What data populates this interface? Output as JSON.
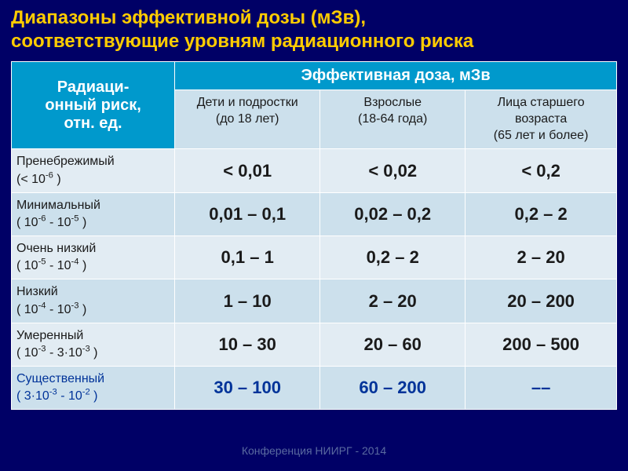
{
  "title_line1": "Диапазоны эффективной дозы (мЗв),",
  "title_line2": "соответствующие уровням радиационного риска",
  "header": {
    "risk_col_line1": "Радиаци-",
    "risk_col_line2": "онный риск,",
    "risk_col_line3": "отн. ед.",
    "dose_header": "Эффективная доза, мЗв",
    "sub": {
      "children_l1": "Дети и подростки",
      "children_l2": "(до 18 лет)",
      "adults_l1": "Взрослые",
      "adults_l2": "(18-64 года)",
      "elderly_l1": "Лица старшего возраста",
      "elderly_l2": "(65 лет и более)"
    }
  },
  "rows": [
    {
      "label": "Пренебрежимый",
      "range_html": "(< 10<sup>-6</sup> )",
      "children": "< 0,01",
      "adults": "< 0,02",
      "elderly": "< 0,2"
    },
    {
      "label": "Минимальный",
      "range_html": "( 10<sup>-6</sup> - 10<sup>-5</sup> )",
      "children": "0,01 – 0,1",
      "adults": "0,02 – 0,2",
      "elderly": "0,2 – 2"
    },
    {
      "label": "Очень низкий",
      "range_html": "( 10<sup>-5</sup> - 10<sup>-4</sup> )",
      "children": "0,1 – 1",
      "adults": "0,2 – 2",
      "elderly": "2 – 20"
    },
    {
      "label": "Низкий",
      "range_html": "( 10<sup>-4</sup> - 10<sup>-3</sup> )",
      "children": "1 – 10",
      "adults": "2 – 20",
      "elderly": "20 – 200"
    },
    {
      "label": "Умеренный",
      "range_html": "( 10<sup>-3</sup> - 3·10<sup>-3</sup> )",
      "children": "10 – 30",
      "adults": "20 – 60",
      "elderly": "200 – 500"
    },
    {
      "label": "Существенный",
      "range_html": "( 3·10<sup>-3</sup> - 10<sup>-2</sup> )",
      "children": "30 – 100",
      "adults": "60 – 200",
      "elderly": "––"
    }
  ],
  "footer": "Конференция НИИРГ - 2014",
  "colors": {
    "background": "#000066",
    "title_color": "#ffcc00",
    "header_main_bg": "#0099cc",
    "header_sub_bg": "#cce0ec",
    "row_even_bg": "#e2ecf3",
    "row_odd_bg": "#cce0ec",
    "last_row_text": "#003399"
  },
  "column_widths_pct": [
    27,
    24,
    24,
    25
  ]
}
